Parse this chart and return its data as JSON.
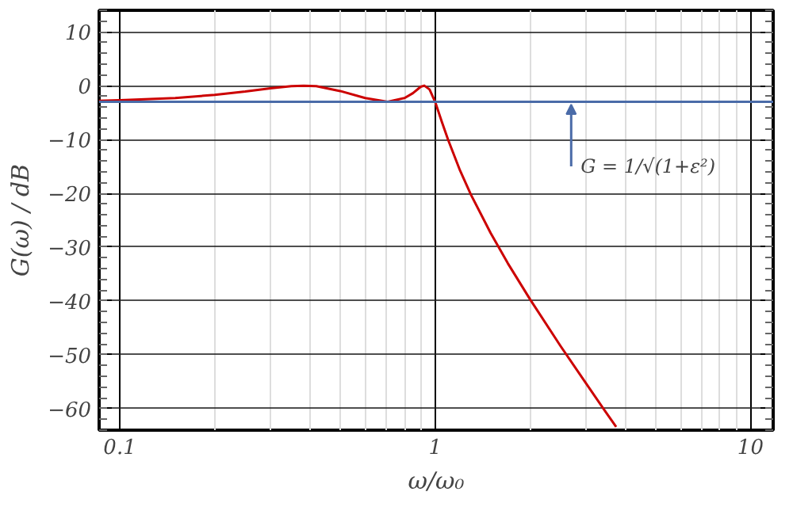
{
  "chart_data": {
    "type": "line",
    "xlabel": "ω/ω₀",
    "ylabel": "G(ω) / dB",
    "x": [
      0.086,
      0.1,
      0.15,
      0.2,
      0.25,
      0.3,
      0.35,
      0.383,
      0.42,
      0.5,
      0.6,
      0.707,
      0.8,
      0.85,
      0.9,
      0.924,
      0.96,
      1.0,
      1.05,
      1.1,
      1.2,
      1.3,
      1.5,
      1.7,
      2.0,
      2.5,
      3.0,
      3.5,
      3.75
    ],
    "series": [
      {
        "color": "#cc0000",
        "values": [
          -2.8,
          -2.7,
          -2.3,
          -1.7,
          -1.1,
          -0.5,
          -0.1,
          0.0,
          -0.1,
          -1.0,
          -2.3,
          -3.0,
          -2.3,
          -1.4,
          -0.2,
          0.0,
          -0.7,
          -3.0,
          -6.7,
          -10.1,
          -15.8,
          -20.3,
          -27.4,
          -33.0,
          -39.7,
          -48.4,
          -55.2,
          -60.9,
          -63.4
        ]
      }
    ],
    "xlim": [
      0.086,
      11.8
    ],
    "ylim": [
      -64,
      14
    ],
    "xticks": [
      0.1,
      1,
      10
    ],
    "yticks": [
      -60,
      -50,
      -40,
      -30,
      -20,
      -10,
      0,
      10
    ],
    "log": "x",
    "grid": true,
    "line_style": "solid",
    "marker": "none",
    "ref_lines": [
      {
        "axis": "y",
        "value": -3.0,
        "color": "#4a6ba8",
        "line_style": "solid"
      }
    ],
    "annotations": [
      {
        "text": "G = 1/√(1+ε²)",
        "x": 2.7,
        "y": -3.0
      }
    ]
  }
}
